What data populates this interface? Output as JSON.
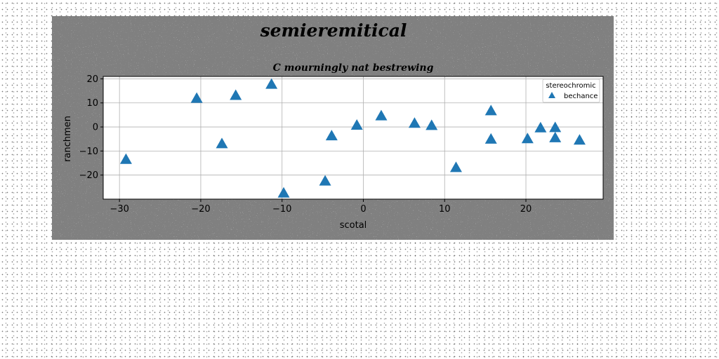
{
  "colors": {
    "figure_background": "#808080",
    "axes_background": "#ffffff",
    "marker": "#1f77b4",
    "grid": "#b0b0b0",
    "text": "#000000"
  },
  "figure_title": "semieremitical",
  "chart_data": {
    "type": "scatter",
    "title": "C mourningly nat bestrewing",
    "xlabel": "scotal",
    "ylabel": "ranchmen",
    "xlim": [
      -32,
      29.5
    ],
    "ylim": [
      -30,
      21
    ],
    "xticks": [
      -30,
      -20,
      -10,
      0,
      10,
      20
    ],
    "yticks": [
      -20,
      -10,
      0,
      10,
      20
    ],
    "grid": true,
    "marker": "triangle",
    "legend": {
      "title": "stereochromic",
      "placement": "top-right"
    },
    "series": [
      {
        "name": "bechance",
        "x": [
          -29.2,
          -20.5,
          -17.4,
          -15.7,
          -11.3,
          -9.8,
          -4.7,
          -3.9,
          -0.8,
          2.2,
          6.3,
          8.4,
          11.4,
          15.7,
          15.7,
          20.2,
          21.8,
          23.6,
          23.6,
          26.6
        ],
        "y": [
          -13.6,
          11.8,
          -7.1,
          13.0,
          17.6,
          -27.6,
          -22.6,
          -3.8,
          0.6,
          4.5,
          1.4,
          0.5,
          -17.0,
          6.6,
          -5.2,
          -5.0,
          -0.5,
          -0.4,
          -4.6,
          -5.6
        ]
      }
    ]
  }
}
